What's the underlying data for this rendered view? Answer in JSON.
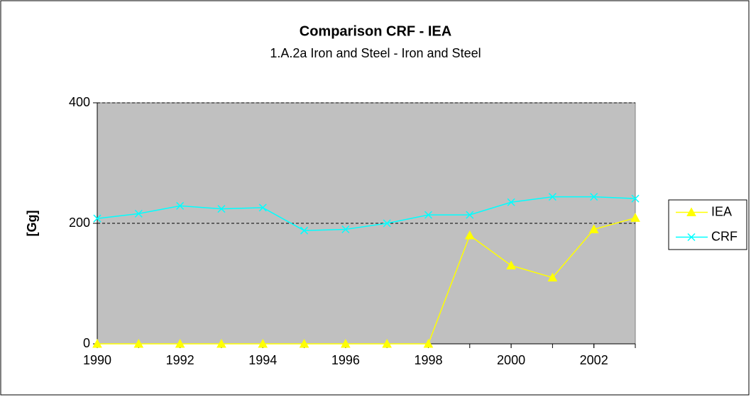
{
  "chart_data": {
    "type": "line",
    "title": "Comparison CRF - IEA",
    "subtitle": "1.A.2a Iron and Steel - Iron and Steel",
    "y_label": "[Gg]",
    "x": [
      1990,
      1991,
      1992,
      1993,
      1994,
      1995,
      1996,
      1997,
      1998,
      1999,
      2000,
      2001,
      2002,
      2003
    ],
    "series": [
      {
        "name": "IEA",
        "color": "#ffff00",
        "marker": "triangle",
        "values": [
          0,
          0,
          0,
          0,
          0,
          0,
          0,
          0,
          0,
          180,
          130,
          110,
          190,
          209
        ]
      },
      {
        "name": "CRF",
        "color": "#00ffff",
        "marker": "x",
        "values": [
          208,
          216,
          229,
          224,
          226,
          188,
          190,
          200,
          214,
          214,
          235,
          244,
          244,
          241
        ]
      }
    ],
    "xlim": [
      1990,
      2003
    ],
    "xticks": [
      1990,
      1992,
      1994,
      1996,
      1998,
      2000,
      2002
    ],
    "ylim": [
      0,
      400
    ],
    "yticks": [
      0,
      200,
      400
    ],
    "grid": true,
    "plot_background": "#c0c0c0",
    "legend": "right"
  }
}
